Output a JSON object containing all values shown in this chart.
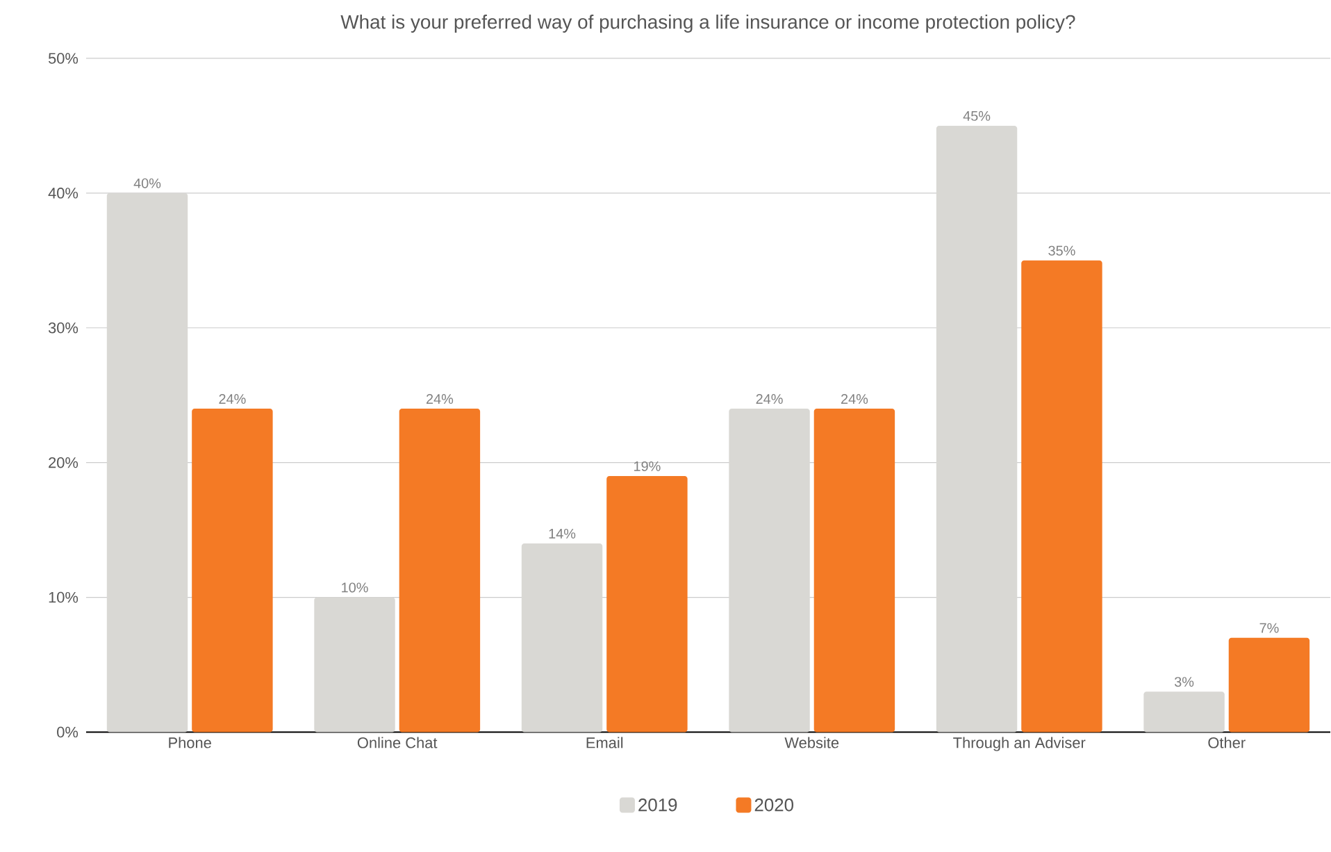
{
  "chart_data": {
    "type": "bar",
    "title": "What is your preferred way of purchasing a life insurance or income protection policy?",
    "categories": [
      "Phone",
      "Online Chat",
      "Email",
      "Website",
      "Through an Adviser",
      "Other"
    ],
    "series": [
      {
        "name": "2019",
        "color": "#d9d8d4",
        "values": [
          40,
          10,
          14,
          24,
          45,
          3
        ],
        "value_labels": [
          "40%",
          "10%",
          "14%",
          "24%",
          "45%",
          "3%"
        ]
      },
      {
        "name": "2020",
        "color": "#f47a25",
        "values": [
          24,
          24,
          19,
          24,
          35,
          7
        ],
        "value_labels": [
          "24%",
          "24%",
          "19%",
          "24%",
          "35%",
          "7%"
        ]
      }
    ],
    "ylim": [
      0,
      50
    ],
    "yticks": [
      {
        "value": 0,
        "label": "0%"
      },
      {
        "value": 10,
        "label": "10%"
      },
      {
        "value": 20,
        "label": "20%"
      },
      {
        "value": 30,
        "label": "30%"
      },
      {
        "value": 40,
        "label": "40%"
      },
      {
        "value": 50,
        "label": "50%"
      }
    ],
    "grid": "y",
    "legend": "bottom"
  }
}
